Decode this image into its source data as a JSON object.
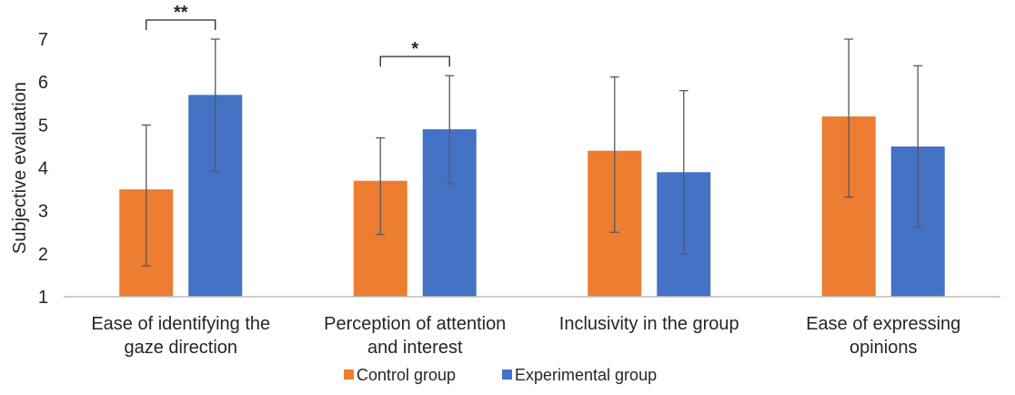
{
  "chart_data": {
    "type": "bar",
    "title": "",
    "xlabel": "",
    "ylabel": "Subjective evaluation",
    "ylim": [
      1,
      7
    ],
    "yticks": [
      "1",
      "2",
      "3",
      "4",
      "5",
      "6",
      "7"
    ],
    "grid": false,
    "legend_position": "bottom",
    "categories": [
      [
        "Ease of identifying the",
        "gaze direction"
      ],
      [
        "Perception of attention",
        "and interest"
      ],
      [
        "Inclusivity in the group"
      ],
      [
        "Ease of expressing",
        "opinions"
      ]
    ],
    "series": [
      {
        "name": "Control group",
        "color": "#ED7D31",
        "values": [
          3.5,
          3.7,
          4.4,
          5.2
        ],
        "error_low": [
          1.72,
          2.45,
          2.5,
          3.32
        ],
        "error_high": [
          5.0,
          4.7,
          6.12,
          7.0
        ]
      },
      {
        "name": "Experimental group",
        "color": "#4472C4",
        "values": [
          5.7,
          4.9,
          3.9,
          4.5
        ],
        "error_low": [
          3.92,
          3.63,
          2.0,
          2.62
        ],
        "error_high": [
          7.0,
          6.15,
          5.8,
          6.38
        ]
      }
    ],
    "significance": [
      {
        "category_index": 0,
        "label": "**"
      },
      {
        "category_index": 1,
        "label": "*"
      }
    ]
  }
}
